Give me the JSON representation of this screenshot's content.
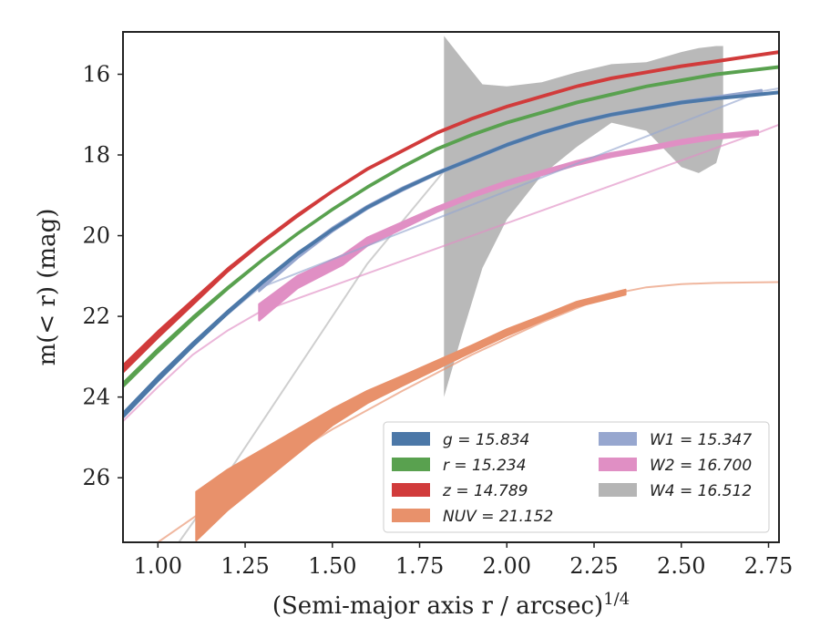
{
  "chart_data": {
    "type": "line",
    "title": "",
    "xlabel": "(Semi-major axis r / arcsec)^1/4",
    "ylabel": "m(< r) (mag)",
    "xlim": [
      0.9,
      2.78
    ],
    "ylim": [
      27.6,
      14.95
    ],
    "y_inverted": true,
    "x_ticks": [
      1.0,
      1.25,
      1.5,
      1.75,
      2.0,
      2.25,
      2.5,
      2.75
    ],
    "x_tick_labels": [
      "1.00",
      "1.25",
      "1.50",
      "1.75",
      "2.00",
      "2.25",
      "2.50",
      "2.75"
    ],
    "y_ticks": [
      16,
      18,
      20,
      22,
      24,
      26
    ],
    "y_tick_labels": [
      "16",
      "18",
      "20",
      "22",
      "24",
      "26"
    ],
    "legend_position": "lower-right",
    "legend_columns": 2,
    "series": [
      {
        "name": "g = 15.834",
        "legend_label": "g = 15.834",
        "color": "#4c78a8",
        "x": [
          0.9,
          1.0,
          1.1,
          1.2,
          1.3,
          1.4,
          1.5,
          1.6,
          1.7,
          1.8,
          1.9,
          2.0,
          2.1,
          2.2,
          2.3,
          2.4,
          2.5,
          2.6,
          2.7,
          2.78
        ],
        "y": [
          24.45,
          23.55,
          22.7,
          21.9,
          21.15,
          20.45,
          19.85,
          19.3,
          18.85,
          18.45,
          18.1,
          17.75,
          17.45,
          17.2,
          17.0,
          16.85,
          16.7,
          16.6,
          16.52,
          16.45
        ],
        "band_halfwidth": [
          0.06,
          0.06,
          0.05,
          0.04,
          0.03,
          0.03,
          0.02,
          0.02,
          0.02,
          0.02,
          0.02,
          0.02,
          0.02,
          0.02,
          0.02,
          0.02,
          0.02,
          0.02,
          0.02,
          0.02
        ]
      },
      {
        "name": "r = 15.234",
        "legend_label": "r = 15.234",
        "color": "#59a14f",
        "x": [
          0.9,
          1.0,
          1.1,
          1.2,
          1.3,
          1.4,
          1.5,
          1.6,
          1.7,
          1.8,
          1.9,
          2.0,
          2.1,
          2.2,
          2.3,
          2.4,
          2.5,
          2.6,
          2.7,
          2.78
        ],
        "y": [
          23.7,
          22.85,
          22.05,
          21.3,
          20.6,
          19.95,
          19.35,
          18.8,
          18.3,
          17.85,
          17.5,
          17.2,
          16.95,
          16.7,
          16.5,
          16.3,
          16.15,
          16.0,
          15.9,
          15.82
        ],
        "band_halfwidth": [
          0.05,
          0.05,
          0.04,
          0.03,
          0.02,
          0.02,
          0.02,
          0.02,
          0.02,
          0.02,
          0.02,
          0.02,
          0.02,
          0.02,
          0.02,
          0.02,
          0.02,
          0.02,
          0.02,
          0.02
        ]
      },
      {
        "name": "z = 14.789",
        "legend_label": "z = 14.789",
        "color": "#d13b3b",
        "x": [
          0.9,
          1.0,
          1.1,
          1.2,
          1.3,
          1.4,
          1.5,
          1.6,
          1.7,
          1.8,
          1.9,
          2.0,
          2.1,
          2.2,
          2.3,
          2.4,
          2.5,
          2.6,
          2.7,
          2.78
        ],
        "y": [
          23.3,
          22.45,
          21.65,
          20.85,
          20.15,
          19.5,
          18.9,
          18.35,
          17.9,
          17.45,
          17.1,
          16.8,
          16.55,
          16.3,
          16.1,
          15.95,
          15.8,
          15.68,
          15.55,
          15.45
        ],
        "band_halfwidth": [
          0.09,
          0.08,
          0.06,
          0.04,
          0.03,
          0.03,
          0.02,
          0.02,
          0.02,
          0.02,
          0.02,
          0.02,
          0.02,
          0.02,
          0.02,
          0.02,
          0.02,
          0.02,
          0.02,
          0.02
        ]
      },
      {
        "name": "NUV = 21.152",
        "legend_label": "NUV = 21.152",
        "color": "#e8916b",
        "x": [
          1.11,
          1.2,
          1.3,
          1.4,
          1.5,
          1.6,
          1.7,
          1.8,
          1.9,
          2.0,
          2.1,
          2.2,
          2.34
        ],
        "y": [
          26.95,
          26.3,
          25.7,
          25.1,
          24.5,
          24.0,
          23.6,
          23.2,
          22.8,
          22.4,
          22.05,
          21.7,
          21.4
        ],
        "band_halfwidth": [
          0.6,
          0.5,
          0.4,
          0.3,
          0.2,
          0.15,
          0.12,
          0.1,
          0.08,
          0.08,
          0.06,
          0.06,
          0.06
        ],
        "extrapolated": {
          "x": [
            1.0,
            1.1,
            1.2,
            1.35,
            1.5,
            1.7,
            1.9,
            2.1,
            2.3,
            2.4,
            2.5,
            2.6,
            2.7,
            2.78
          ],
          "y": [
            27.6,
            27.0,
            26.4,
            25.6,
            24.8,
            23.85,
            22.95,
            22.15,
            21.45,
            21.28,
            21.2,
            21.17,
            21.16,
            21.15
          ]
        }
      },
      {
        "name": "W1 = 15.347",
        "legend_label": "W1 = 15.347",
        "color": "#97a7cf",
        "x": [
          1.29,
          1.4,
          1.5,
          1.6,
          1.7,
          1.8,
          1.9,
          2.0,
          2.1,
          2.2,
          2.3,
          2.4,
          2.5,
          2.6,
          2.73
        ],
        "y": [
          21.3,
          20.5,
          19.85,
          19.3,
          18.85,
          18.45,
          18.1,
          17.75,
          17.45,
          17.2,
          17.0,
          16.85,
          16.7,
          16.58,
          16.42
        ],
        "band_halfwidth": [
          0.08,
          0.06,
          0.05,
          0.04,
          0.04,
          0.03,
          0.03,
          0.03,
          0.03,
          0.03,
          0.03,
          0.03,
          0.03,
          0.03,
          0.03
        ],
        "extrapolated": {
          "x": [
            0.9,
            1.0,
            1.1,
            1.2,
            1.29,
            2.73,
            2.78
          ],
          "y": [
            24.4,
            23.5,
            22.65,
            21.95,
            21.3,
            16.42,
            16.35
          ]
        }
      },
      {
        "name": "W2 = 16.700",
        "legend_label": "W2 = 16.700",
        "color": "#e08fc4",
        "x": [
          1.29,
          1.4,
          1.53,
          1.6,
          1.7,
          1.8,
          1.9,
          2.0,
          2.1,
          2.2,
          2.3,
          2.4,
          2.5,
          2.6,
          2.72
        ],
        "y": [
          21.9,
          21.15,
          20.6,
          20.15,
          19.75,
          19.35,
          19.0,
          18.7,
          18.45,
          18.2,
          18.0,
          17.85,
          17.68,
          17.55,
          17.45
        ],
        "band_halfwidth": [
          0.2,
          0.15,
          0.12,
          0.1,
          0.08,
          0.06,
          0.05,
          0.05,
          0.05,
          0.05,
          0.05,
          0.05,
          0.05,
          0.05,
          0.05
        ],
        "extrapolated": {
          "x": [
            0.9,
            1.0,
            1.1,
            1.2,
            1.29,
            2.72,
            2.78
          ],
          "y": [
            24.6,
            23.75,
            22.95,
            22.35,
            21.9,
            17.45,
            17.25
          ]
        }
      },
      {
        "name": "W4 = 16.512",
        "legend_label": "W4 = 16.512",
        "color": "#b5b5b5",
        "band_x": [
          1.82,
          1.87,
          1.93,
          2.0,
          2.1,
          2.2,
          2.3,
          2.4,
          2.5,
          2.55,
          2.6,
          2.62
        ],
        "band_upper": [
          15.05,
          15.6,
          16.25,
          16.3,
          16.2,
          15.95,
          15.75,
          15.7,
          15.45,
          15.35,
          15.3,
          15.3
        ],
        "band_lower": [
          24.0,
          22.5,
          20.8,
          19.6,
          18.5,
          17.8,
          17.2,
          17.4,
          18.3,
          18.45,
          18.2,
          17.6
        ],
        "extrapolated": {
          "x": [
            1.06,
            1.2,
            1.4,
            1.6,
            1.82
          ],
          "y": [
            27.6,
            25.9,
            23.3,
            20.7,
            18.4
          ]
        }
      }
    ]
  }
}
